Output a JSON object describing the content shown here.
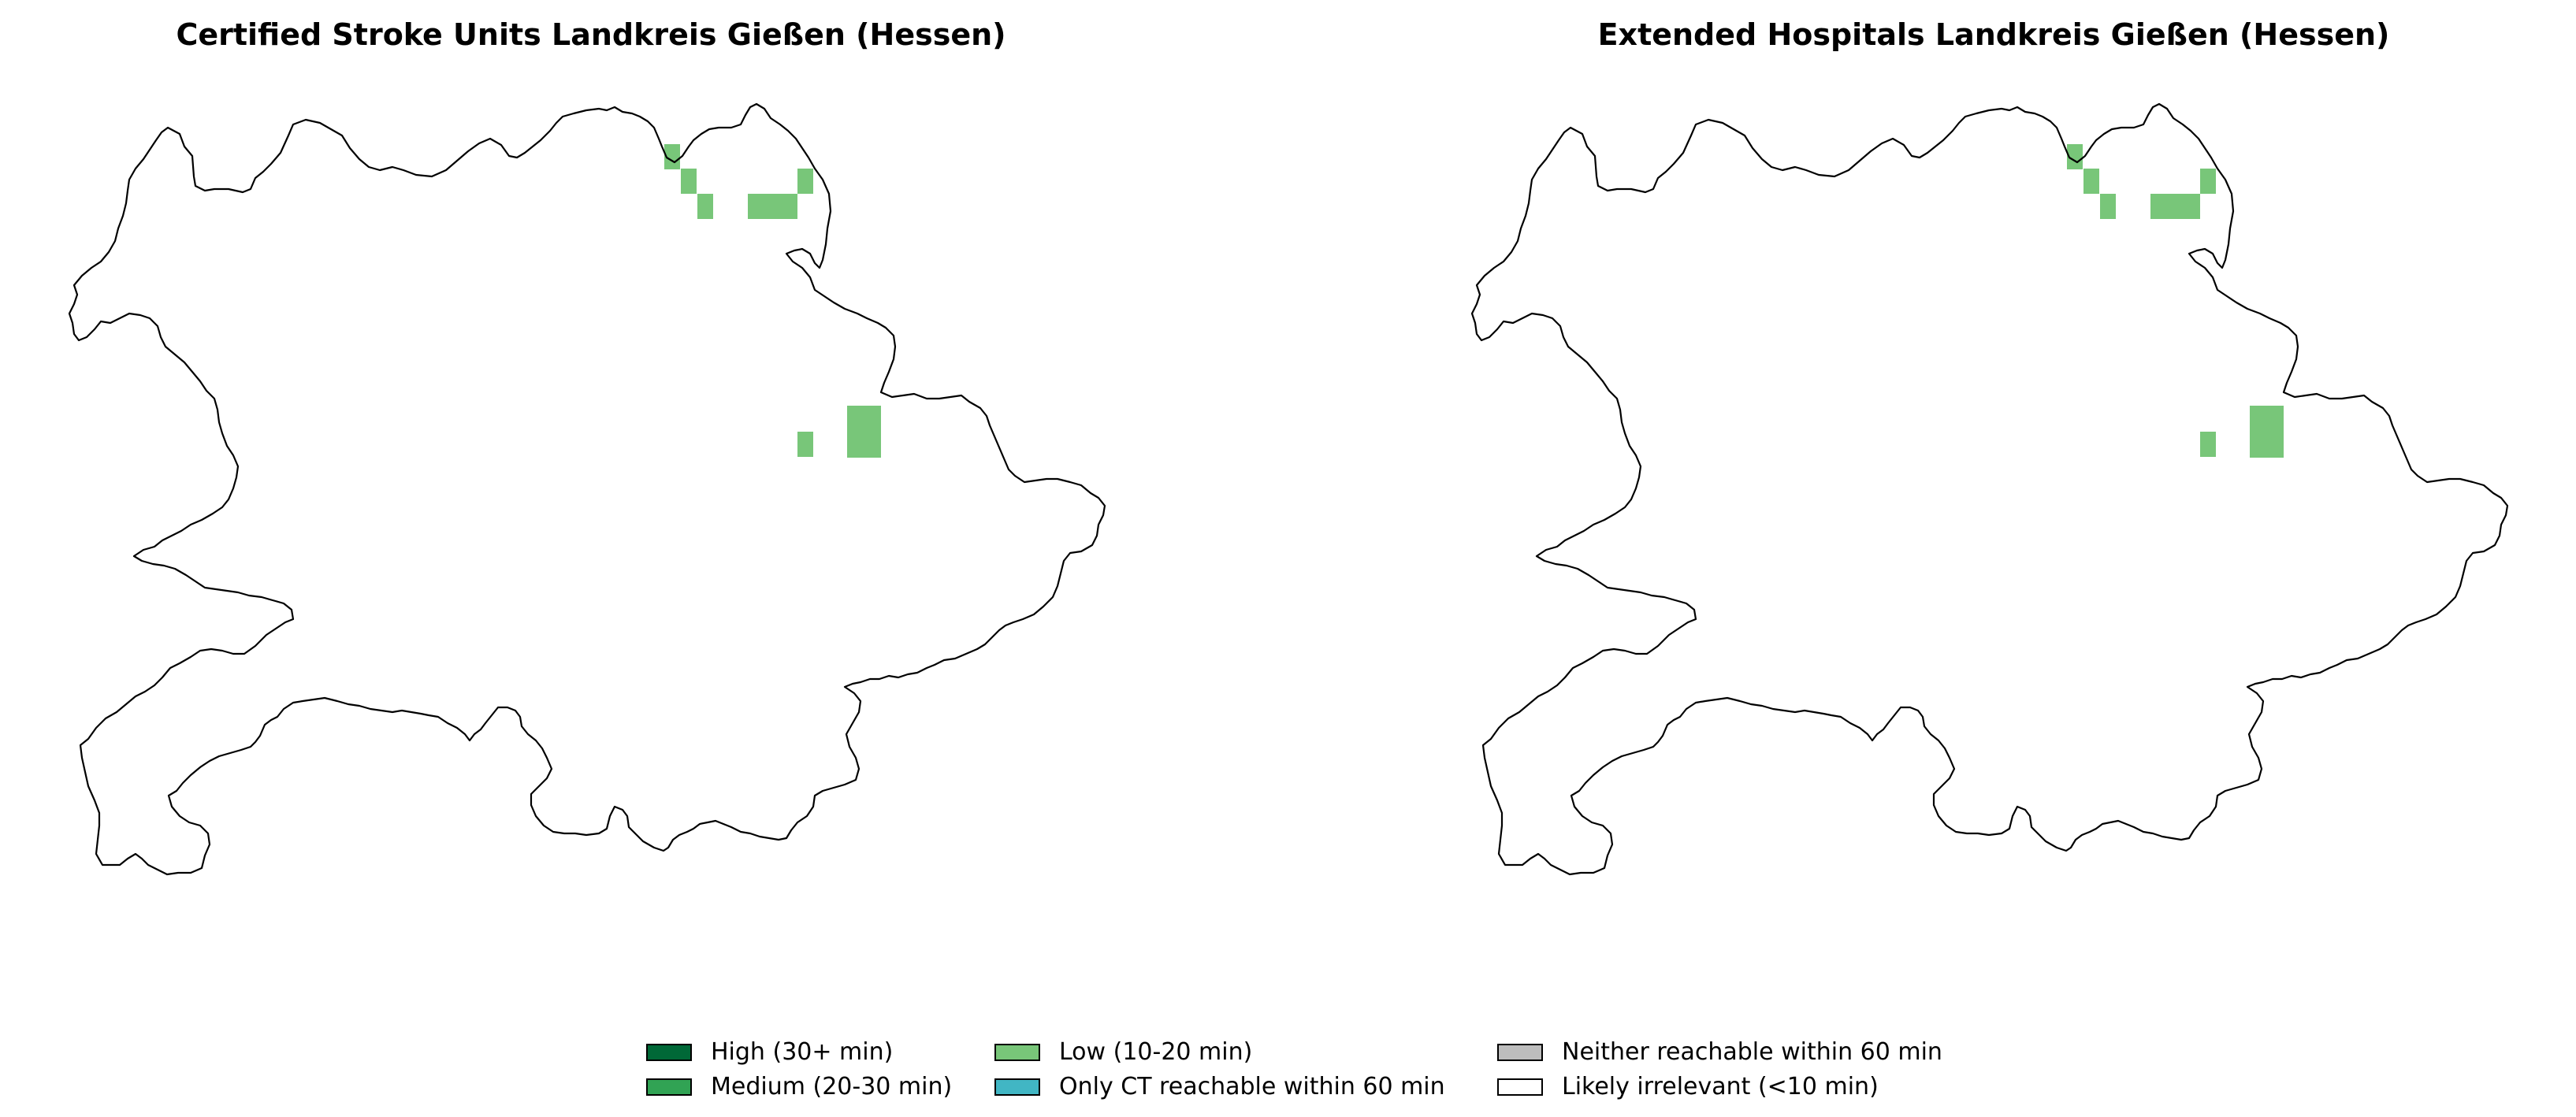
{
  "panels": [
    {
      "title": "Certified Stroke Units Landkreis Gießen (Hessen)"
    },
    {
      "title": "Extended Hospitals Landkreis Gießen (Hessen)"
    }
  ],
  "legend": {
    "items": [
      {
        "label": "High (30+ min)",
        "color": "#006837"
      },
      {
        "label": "Medium (20-30 min)",
        "color": "#31a354"
      },
      {
        "label": "Low (10-20 min)",
        "color": "#78c679"
      },
      {
        "label": "Only CT reachable within 60 min",
        "color": "#41b6c4"
      },
      {
        "label": "Neither reachable within 60 min",
        "color": "#bdbdbd"
      },
      {
        "label": "Likely irrelevant (<10 min)",
        "color": "#ffffff"
      }
    ]
  },
  "map_style": {
    "outline_color": "#000000",
    "fill_color": "#ffffff"
  }
}
